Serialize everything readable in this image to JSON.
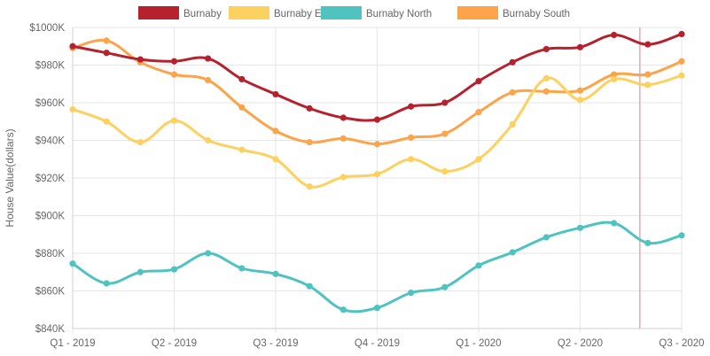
{
  "chart_data": {
    "type": "line",
    "categories": [
      "Q1 - 2019",
      "Q2 - 2019",
      "Q3 - 2019",
      "Q4 - 2019",
      "Q1 - 2020",
      "Q2 - 2020",
      "Q3 - 2020"
    ],
    "ylabel": "House Value(dollars)",
    "ylim": [
      840000,
      1000000
    ],
    "y_tick_labels": [
      "$840K",
      "$860K",
      "$880K",
      "$900K",
      "$920K",
      "$940K",
      "$960K",
      "$980K",
      "$1000K"
    ],
    "grid": true,
    "legend_position": "top-center",
    "marker_at": "Q2 - 2020 + 2 months",
    "marker_color": "#f4a5ad",
    "x": [
      "Q1 - 2019",
      "Q1 - 2019 + 1 month",
      "Q1 - 2019 + 2 months",
      "Q2 - 2019",
      "Q2 - 2019 + 1 month",
      "Q2 - 2019 + 2 months",
      "Q3 - 2019",
      "Q3 - 2019 + 1 month",
      "Q3 - 2019 + 2 months",
      "Q4 - 2019",
      "Q4 - 2019 + 1 month",
      "Q4 - 2019 + 2 months",
      "Q1 - 2020",
      "Q1 - 2020 + 1 month",
      "Q1 - 2020 + 2 months",
      "Q2 - 2020",
      "Q2 - 2020 + 1 month",
      "Q2 - 2020 + 2 months",
      "Q3 - 2020"
    ],
    "series": [
      {
        "name": "Burnaby",
        "color": "#b5222d",
        "values": [
          990000,
          986500,
          983000,
          982000,
          983500,
          972500,
          964500,
          957000,
          952000,
          951000,
          958000,
          960000,
          971500,
          981500,
          988500,
          989500,
          996000,
          991000,
          996500
        ]
      },
      {
        "name": "Burnaby East",
        "color": "#fdd160",
        "values": [
          956500,
          950000,
          939000,
          950500,
          940000,
          935000,
          930000,
          915500,
          920500,
          922000,
          930000,
          923500,
          930000,
          948500,
          973000,
          961500,
          972500,
          969500,
          974500
        ]
      },
      {
        "name": "Burnaby North",
        "color": "#4ec3c0",
        "values": [
          874500,
          864000,
          870000,
          871500,
          880000,
          872000,
          869000,
          862500,
          850000,
          851000,
          859000,
          862000,
          873500,
          880500,
          888500,
          893500,
          896000,
          885500,
          889500
        ]
      },
      {
        "name": "Burnaby South",
        "color": "#fda44b",
        "values": [
          989000,
          993000,
          981500,
          975000,
          972000,
          957500,
          945000,
          939000,
          941000,
          938000,
          941500,
          943500,
          955000,
          965500,
          966000,
          966500,
          975000,
          975000,
          982000
        ]
      }
    ]
  }
}
